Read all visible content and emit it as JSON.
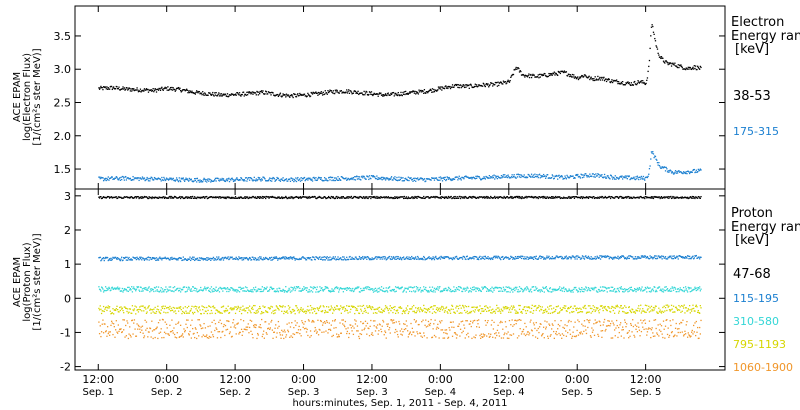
{
  "chart_data": [
    {
      "type": "scatter",
      "panel": "electron",
      "ylabel_lines": [
        "ACE EPAM",
        "log(Electron Flux)",
        "[1/(cm²s ster MeV)]"
      ],
      "ylim": [
        1.2,
        3.95
      ],
      "yticks": [
        1.5,
        2.0,
        2.5,
        3.0,
        3.5
      ],
      "ytick_labels": [
        "1.5",
        "2.0",
        "2.5",
        "3.0",
        "3.5"
      ],
      "legend_title": [
        "Electron",
        "Energy range",
        "[keV]"
      ],
      "series": [
        {
          "name": "38-53",
          "color": "#000000",
          "x": [
            0.0,
            0.1,
            0.2,
            0.3,
            0.4,
            0.5,
            0.6,
            0.7,
            0.8,
            0.9,
            1.0,
            1.1,
            1.2,
            1.3,
            1.4,
            1.5,
            1.6,
            1.7,
            1.8,
            1.9,
            2.0,
            2.1,
            2.2,
            2.3,
            2.4,
            2.5,
            2.6,
            2.7,
            2.8,
            2.9,
            3.0,
            3.05,
            3.1,
            3.2,
            3.3,
            3.4,
            3.5,
            3.55,
            3.6,
            3.65,
            3.7,
            3.75,
            3.8,
            3.85,
            3.9,
            3.95,
            4.0,
            4.02,
            4.04,
            4.06,
            4.08,
            4.1,
            4.12,
            4.15,
            4.2,
            4.25,
            4.3,
            4.35,
            4.4
          ],
          "y": [
            2.72,
            2.73,
            2.71,
            2.7,
            2.69,
            2.72,
            2.7,
            2.66,
            2.64,
            2.62,
            2.63,
            2.64,
            2.66,
            2.63,
            2.61,
            2.62,
            2.64,
            2.67,
            2.68,
            2.66,
            2.64,
            2.62,
            2.64,
            2.66,
            2.68,
            2.72,
            2.76,
            2.75,
            2.77,
            2.78,
            2.82,
            3.04,
            2.92,
            2.9,
            2.93,
            2.96,
            2.88,
            2.92,
            2.86,
            2.88,
            2.86,
            2.83,
            2.82,
            2.8,
            2.79,
            2.82,
            2.8,
            3.05,
            3.72,
            3.5,
            3.3,
            3.2,
            3.15,
            3.1,
            3.08,
            3.05,
            3.02,
            3.04,
            3.02
          ]
        },
        {
          "name": "175-315",
          "color": "#1a7fd0",
          "x": [
            0.0,
            0.2,
            0.4,
            0.6,
            0.8,
            1.0,
            1.2,
            1.4,
            1.6,
            1.8,
            2.0,
            2.2,
            2.4,
            2.6,
            2.8,
            3.0,
            3.2,
            3.4,
            3.6,
            3.8,
            4.0,
            4.02,
            4.04,
            4.06,
            4.08,
            4.1,
            4.15,
            4.2,
            4.3,
            4.4
          ],
          "y": [
            1.36,
            1.37,
            1.36,
            1.35,
            1.34,
            1.35,
            1.36,
            1.35,
            1.36,
            1.37,
            1.38,
            1.36,
            1.35,
            1.37,
            1.38,
            1.4,
            1.41,
            1.38,
            1.42,
            1.38,
            1.37,
            1.45,
            1.78,
            1.7,
            1.62,
            1.55,
            1.5,
            1.46,
            1.47,
            1.48
          ]
        }
      ]
    },
    {
      "type": "scatter",
      "panel": "proton",
      "ylabel_lines": [
        "ACE EPAM",
        "log(Proton Flux)",
        "[1/(cm²s ster MeV)]"
      ],
      "ylim": [
        -2.1,
        3.2
      ],
      "yticks": [
        -2,
        -1,
        0,
        1,
        2,
        3
      ],
      "ytick_labels": [
        "-2",
        "-1",
        "0",
        "1",
        "2",
        "3"
      ],
      "legend_title": [
        "Proton",
        "Energy range",
        "[keV]"
      ],
      "series": [
        {
          "name": "47-68",
          "color": "#000000",
          "x": [
            0.0,
            4.4
          ],
          "y": [
            2.97,
            2.97
          ],
          "spread": 0.03
        },
        {
          "name": "115-195",
          "color": "#1a7fd0",
          "x": [
            0.0,
            4.4
          ],
          "y": [
            1.17,
            1.22
          ],
          "spread": 0.05
        },
        {
          "name": "310-580",
          "color": "#33d6d6",
          "x": [
            0.0,
            4.4
          ],
          "y": [
            0.28,
            0.28
          ],
          "spread": 0.08
        },
        {
          "name": "795-1193",
          "color": "#d6d600",
          "x": [
            0.0,
            4.4
          ],
          "y": [
            -0.32,
            -0.3
          ],
          "spread": 0.12
        },
        {
          "name": "1060-1900",
          "color": "#f0962a",
          "x": [
            0.0,
            4.4
          ],
          "y": [
            -0.88,
            -0.88
          ],
          "spread": 0.28
        }
      ]
    }
  ],
  "x_axis": {
    "xlim": [
      -0.17,
      4.58
    ],
    "ticks": [
      0.0,
      0.5,
      1.0,
      1.5,
      2.0,
      2.5,
      3.0,
      3.5,
      4.0
    ],
    "tick_labels_top": [
      "12:00",
      "0:00",
      "12:00",
      "0:00",
      "12:00",
      "0:00",
      "12:00",
      "0:00",
      "12:00"
    ],
    "tick_labels_bottom": [
      "Sep. 1",
      "Sep. 2",
      "Sep. 2",
      "Sep. 3",
      "Sep. 3",
      "Sep. 4",
      "Sep. 4",
      "Sep. 5",
      "Sep. 5"
    ],
    "title": "hours:minutes, Sep.  1, 2011 - Sep.  4, 2011"
  }
}
